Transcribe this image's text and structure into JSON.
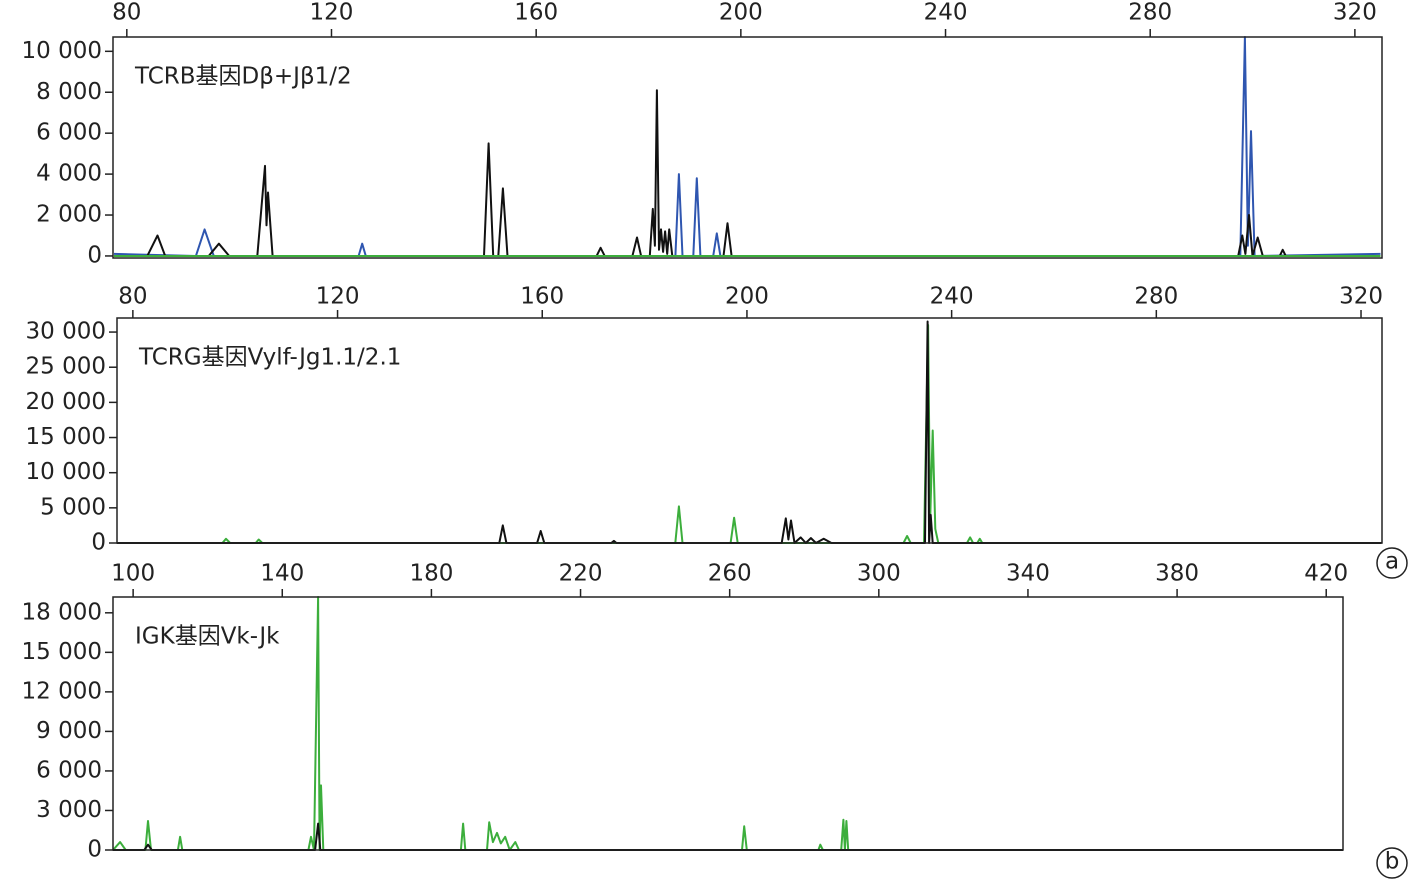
{
  "chart_data": [
    {
      "type": "line",
      "title": "TCRB基因Dβ+Jβ1/2",
      "xlim": [
        77.3,
        325.3
      ],
      "ylim": [
        -100,
        10700
      ],
      "xticks": [
        80,
        120,
        160,
        200,
        240,
        280,
        320
      ],
      "yticks": [
        0,
        {
          "value": 2000,
          "label": "2 000"
        },
        {
          "value": 4000,
          "label": "4 000"
        },
        {
          "value": 6000,
          "label": "6 000"
        },
        {
          "value": 8000,
          "label": "8 000"
        },
        {
          "value": 10000,
          "label": "10 000"
        }
      ],
      "series": [
        {
          "color": "#2f56b0",
          "x": [
            77.5,
            93.5,
            95.2,
            97,
            125.3,
            126,
            126.7,
            187.2,
            187.9,
            188.6,
            190.7,
            191.4,
            192.1,
            194.6,
            195.3,
            196,
            297.6,
            298.5,
            299.1,
            299.7,
            300.4,
            325
          ],
          "values": [
            100,
            0,
            1300,
            0,
            0,
            600,
            0,
            0,
            4000,
            0,
            0,
            3800,
            0,
            0,
            1100,
            0,
            0,
            10700,
            500,
            6100,
            0,
            100
          ]
        },
        {
          "color": "#111111",
          "x": [
            77.5,
            84,
            86,
            87.5,
            96,
            98,
            100,
            105.5,
            107,
            107.3,
            107.6,
            108.5,
            149.8,
            150.7,
            151.6,
            152.6,
            153.5,
            154.4,
            171.8,
            172.6,
            173.4,
            178.8,
            179.7,
            180.5,
            182.2,
            182.8,
            183.2,
            183.6,
            184,
            184.4,
            184.8,
            185.2,
            185.6,
            186,
            186.6,
            196.6,
            197.4,
            198.2,
            297.2,
            298,
            298.6,
            299.3,
            300,
            301,
            302,
            305.3,
            305.9,
            306.5,
            325
          ],
          "values": [
            0,
            0,
            1000,
            0,
            0,
            600,
            0,
            0,
            4400,
            1500,
            3100,
            0,
            0,
            5500,
            0,
            0,
            3300,
            0,
            0,
            400,
            0,
            0,
            900,
            0,
            0,
            2300,
            500,
            8100,
            300,
            1300,
            200,
            1200,
            100,
            1300,
            0,
            0,
            1600,
            0,
            0,
            1000,
            100,
            2000,
            0,
            900,
            0,
            0,
            300,
            0,
            0
          ]
        },
        {
          "color": "#3cae3c",
          "x": [
            77.5,
            325
          ],
          "values": [
            0,
            0
          ]
        }
      ]
    },
    {
      "type": "line",
      "title": "TCRG基因Vylf-Jg1.1/2.1",
      "annotation": "a",
      "xlim": [
        76.9,
        324.1
      ],
      "ylim": [
        0,
        32000
      ],
      "xticks": [
        80,
        120,
        160,
        200,
        240,
        280,
        320
      ],
      "yticks": [
        0,
        {
          "value": 5000,
          "label": "5 000"
        },
        {
          "value": 10000,
          "label": "10 000"
        },
        {
          "value": 15000,
          "label": "15 000"
        },
        {
          "value": 20000,
          "label": "20 000"
        },
        {
          "value": 25000,
          "label": "25 000"
        },
        {
          "value": 30000,
          "label": "30 000"
        }
      ],
      "series": [
        {
          "color": "#3cae3c",
          "x": [
            76.9,
            97.5,
            98.2,
            99,
            104,
            104.6,
            105.3,
            186,
            186.7,
            187.4,
            196.8,
            197.5,
            198.2,
            230.6,
            231.3,
            232,
            234.6,
            235.4,
            235.8,
            236.3,
            236.8,
            237.4,
            243,
            243.6,
            244.2,
            245,
            245.5,
            246,
            324
          ],
          "values": [
            0,
            0,
            600,
            0,
            0,
            500,
            0,
            0,
            5200,
            0,
            0,
            3600,
            0,
            0,
            1000,
            0,
            0,
            31000,
            3000,
            16000,
            2000,
            0,
            0,
            800,
            0,
            0,
            600,
            0,
            0
          ]
        },
        {
          "color": "#111111",
          "x": [
            76.9,
            151.6,
            152.3,
            153,
            159,
            159.7,
            160.4,
            173.5,
            174,
            174.5,
            206.8,
            207.6,
            208.1,
            208.6,
            209.3,
            210.5,
            211.5,
            212.5,
            213.5,
            215,
            216.5,
            234.8,
            235.3,
            235.6,
            235.9,
            236.3,
            324
          ],
          "values": [
            0,
            0,
            2500,
            0,
            0,
            1700,
            0,
            0,
            300,
            0,
            0,
            3500,
            500,
            3200,
            0,
            800,
            0,
            700,
            0,
            600,
            0,
            0,
            31500,
            0,
            4000,
            0,
            0
          ]
        }
      ]
    },
    {
      "type": "line",
      "title": "IGK基因Vk-Jk",
      "annotation": "b",
      "xlim": [
        94.6,
        424.5
      ],
      "ylim": [
        0,
        19200
      ],
      "xticks": [
        100,
        140,
        180,
        220,
        260,
        300,
        340,
        380,
        420
      ],
      "yticks": [
        0,
        {
          "value": 3000,
          "label": "3 000"
        },
        {
          "value": 6000,
          "label": "6 000"
        },
        {
          "value": 9000,
          "label": "9 000"
        },
        {
          "value": 12000,
          "label": "12 000"
        },
        {
          "value": 15000,
          "label": "15 000"
        },
        {
          "value": 18000,
          "label": "18 000"
        }
      ],
      "series": [
        {
          "color": "#3cae3c",
          "x": [
            94.6,
            96.5,
            98,
            103.3,
            104,
            104.8,
            112,
            112.6,
            113.2,
            147,
            147.7,
            148.5,
            149.6,
            150,
            150.4,
            151,
            187.9,
            188.5,
            189.1,
            194.9,
            195.5,
            196.5,
            197.6,
            198.6,
            199.8,
            201,
            202.5,
            203.5,
            263.3,
            263.9,
            264.6,
            283.8,
            284.3,
            285,
            289.9,
            290.5,
            290.9,
            291.3,
            291.8,
            424.5
          ],
          "values": [
            0,
            600,
            0,
            0,
            2200,
            0,
            0,
            1000,
            0,
            0,
            1000,
            0,
            19200,
            0,
            4900,
            0,
            0,
            2000,
            0,
            0,
            2100,
            600,
            1300,
            500,
            1000,
            0,
            600,
            0,
            0,
            1800,
            0,
            0,
            400,
            0,
            0,
            2300,
            0,
            2200,
            0,
            0
          ]
        },
        {
          "color": "#111111",
          "x": [
            94.6,
            103,
            104,
            105,
            148.8,
            149.6,
            150.2,
            424.5
          ],
          "values": [
            0,
            0,
            400,
            0,
            0,
            2000,
            0,
            0
          ]
        }
      ]
    }
  ]
}
